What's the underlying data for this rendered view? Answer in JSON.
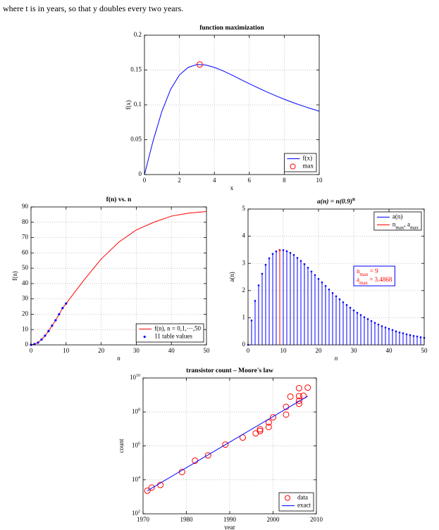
{
  "text": "where t is in years, so that y doubles every two years.",
  "chart_data": [
    {
      "type": "line",
      "title": "function maximization",
      "xlabel": "x",
      "ylabel": "f(x)",
      "xlim": [
        0,
        10
      ],
      "xticks": [
        0,
        2,
        4,
        6,
        8,
        10
      ],
      "ylim": [
        0,
        0.2
      ],
      "yticks": [
        0,
        0.05,
        0.1,
        0.15,
        0.2
      ],
      "grid": true,
      "legend": "lower right",
      "series": [
        {
          "name": "f(x)",
          "color": "#0000ff",
          "style": "line",
          "x": [
            0,
            0.5,
            1,
            1.5,
            2,
            2.5,
            3,
            3.5,
            4,
            4.5,
            5,
            5.5,
            6,
            6.5,
            7,
            7.5,
            8,
            8.5,
            9,
            9.5,
            10
          ],
          "values": [
            0,
            0.0488,
            0.0909,
            0.1224,
            0.1429,
            0.1538,
            0.1579,
            0.1573,
            0.1538,
            0.1488,
            0.1429,
            0.1366,
            0.1304,
            0.1244,
            0.1186,
            0.1132,
            0.1081,
            0.1033,
            0.0989,
            0.0948,
            0.0909
          ]
        },
        {
          "name": "max",
          "color": "#ff0000",
          "style": "marker",
          "x": [
            3.162
          ],
          "values": [
            0.158
          ]
        }
      ]
    },
    {
      "type": "line",
      "title": "f(n) vs. n",
      "xlabel": "n",
      "ylabel": "f(n)",
      "xlim": [
        0,
        50
      ],
      "xticks": [
        0,
        10,
        20,
        30,
        40,
        50
      ],
      "ylim": [
        0,
        90
      ],
      "yticks": [
        0,
        10,
        20,
        30,
        40,
        50,
        60,
        70,
        80,
        90
      ],
      "grid": true,
      "legend": "lower right",
      "series": [
        {
          "name": "f(n), n = 0,1,···,50",
          "color": "#ff0000",
          "style": "line",
          "x": [
            0,
            1,
            2,
            3,
            4,
            5,
            6,
            7,
            8,
            9,
            10,
            15,
            20,
            25,
            30,
            35,
            40,
            45,
            50
          ],
          "values": [
            0,
            0.5,
            1.5,
            3.5,
            6,
            9,
            12.5,
            16,
            20,
            24,
            27,
            42,
            56,
            67,
            75,
            80,
            84,
            86,
            87
          ]
        },
        {
          "name": "11 table values",
          "color": "#0000ff",
          "style": "dot",
          "x": [
            0,
            1,
            2,
            3,
            4,
            5,
            6,
            7,
            8,
            9,
            10
          ],
          "values": [
            0,
            0.5,
            1.5,
            3.5,
            6,
            9,
            12.5,
            16,
            20,
            24,
            27
          ]
        }
      ]
    },
    {
      "type": "stem",
      "title": "a(n) = n(0.9)",
      "title_sup": "n",
      "xlabel": "n",
      "ylabel": "a(n)",
      "xlim": [
        0,
        50
      ],
      "xticks": [
        0,
        10,
        20,
        30,
        40,
        50
      ],
      "ylim": [
        0,
        5
      ],
      "yticks": [
        0,
        1,
        2,
        3,
        4,
        5
      ],
      "grid": true,
      "legend": "upper right",
      "series": [
        {
          "name": [
            "a(n)"
          ],
          "color": "#0000ff",
          "style": "stem",
          "x": [
            0,
            1,
            2,
            3,
            4,
            5,
            6,
            7,
            8,
            9,
            10,
            11,
            12,
            13,
            14,
            15,
            16,
            17,
            18,
            19,
            20,
            21,
            22,
            23,
            24,
            25,
            26,
            27,
            28,
            29,
            30,
            31,
            32,
            33,
            34,
            35,
            36,
            37,
            38,
            39,
            40,
            41,
            42,
            43,
            44,
            45,
            46,
            47,
            48,
            49,
            50
          ],
          "values": [
            0,
            0.9,
            1.62,
            2.19,
            2.62,
            2.95,
            3.19,
            3.35,
            3.44,
            3.49,
            3.49,
            3.45,
            3.39,
            3.31,
            3.2,
            3.09,
            2.97,
            2.84,
            2.7,
            2.57,
            2.43,
            2.3,
            2.17,
            2.04,
            1.91,
            1.79,
            1.68,
            1.57,
            1.47,
            1.37,
            1.27,
            1.18,
            1.1,
            1.02,
            0.95,
            0.88,
            0.81,
            0.75,
            0.69,
            0.64,
            0.59,
            0.55,
            0.5,
            0.46,
            0.43,
            0.39,
            0.36,
            0.33,
            0.31,
            0.28,
            0.26
          ]
        },
        {
          "name": [
            "n",
            "max",
            ", a",
            "max"
          ],
          "color": "#ff0000",
          "style": "stem",
          "x": [
            9
          ],
          "values": [
            3.4868
          ]
        }
      ],
      "annotations": [
        {
          "parts": [
            "n",
            "max",
            " = 9"
          ]
        },
        {
          "parts": [
            "a",
            "max",
            " = 3.4868"
          ]
        }
      ]
    },
    {
      "type": "scatter",
      "title": "transistor count – Moore's law",
      "xlabel": "year",
      "ylabel": "count",
      "xlim": [
        1970,
        2010
      ],
      "xticks": [
        1970,
        1980,
        1990,
        2000,
        2010
      ],
      "ylog": true,
      "ylim": [
        100,
        10000000000
      ],
      "yticks": [
        {
          "value": 100,
          "label": "10",
          "sup": "2"
        },
        {
          "value": 10000,
          "label": "10",
          "sup": "4"
        },
        {
          "value": 1000000,
          "label": "10",
          "sup": "6"
        },
        {
          "value": 100000000,
          "label": "10",
          "sup": "8"
        },
        {
          "value": 10000000000,
          "label": "10",
          "sup": "10"
        }
      ],
      "grid": true,
      "legend": "lower right",
      "series": [
        {
          "name": "data",
          "color": "#ff0000",
          "style": "marker",
          "x": [
            1971,
            1972,
            1974,
            1979,
            1982,
            1985,
            1989,
            1993,
            1996,
            1997,
            1997,
            1999,
            1999,
            2000,
            2003,
            2003,
            2004,
            2006,
            2006,
            2006,
            2006,
            2007,
            2008
          ],
          "values": [
            2300,
            3500,
            5000,
            29000,
            134000,
            275000,
            1200000,
            3100000,
            5500000,
            7500000,
            9500000,
            13000000,
            24000000,
            48000000,
            70000000,
            200000000,
            800000000,
            300000000,
            450000000,
            850000000,
            2500000000,
            900000000,
            2700000000
          ]
        },
        {
          "name": "exact",
          "color": "#0000ff",
          "style": "line",
          "x": [
            1971,
            2008
          ],
          "values": [
            2300,
            853000000
          ]
        }
      ]
    }
  ]
}
